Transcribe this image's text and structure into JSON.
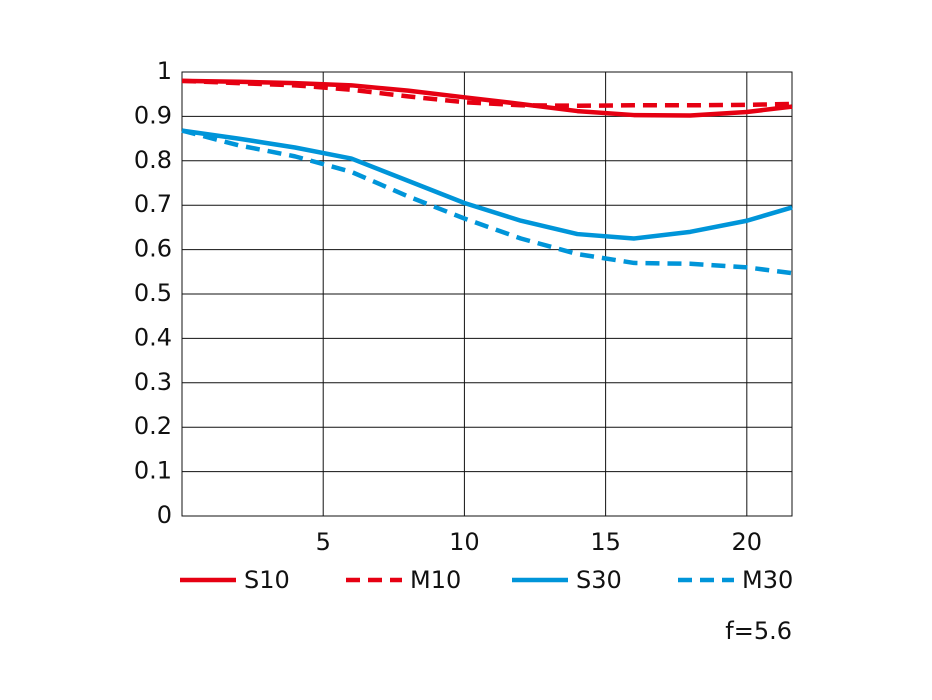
{
  "chart_data": {
    "type": "line",
    "x": [
      0,
      2,
      4,
      6,
      8,
      10,
      12,
      14,
      16,
      18,
      20,
      21.6
    ],
    "series": [
      {
        "name": "S10",
        "color": "#e60012",
        "style": "solid",
        "values": [
          0.98,
          0.978,
          0.975,
          0.97,
          0.958,
          0.943,
          0.928,
          0.912,
          0.903,
          0.902,
          0.91,
          0.922
        ]
      },
      {
        "name": "M10",
        "color": "#e60012",
        "style": "dashed",
        "values": [
          0.98,
          0.975,
          0.97,
          0.96,
          0.945,
          0.932,
          0.925,
          0.924,
          0.925,
          0.925,
          0.926,
          0.928
        ]
      },
      {
        "name": "S30",
        "color": "#0095d9",
        "style": "solid",
        "values": [
          0.868,
          0.85,
          0.83,
          0.805,
          0.755,
          0.705,
          0.665,
          0.635,
          0.625,
          0.64,
          0.665,
          0.695
        ]
      },
      {
        "name": "M30",
        "color": "#0095d9",
        "style": "dashed",
        "values": [
          0.868,
          0.835,
          0.81,
          0.775,
          0.72,
          0.67,
          0.625,
          0.59,
          0.57,
          0.568,
          0.56,
          0.547
        ]
      }
    ],
    "xlim": [
      0,
      21.6
    ],
    "xticks": [
      5,
      10,
      15,
      20
    ],
    "ylim": [
      0,
      1
    ],
    "yticks": [
      0,
      0.1,
      0.2,
      0.3,
      0.4,
      0.5,
      0.6,
      0.7,
      0.8,
      0.9,
      1
    ],
    "grid": true,
    "legend": "bottom",
    "annotation": "f=5.6"
  }
}
